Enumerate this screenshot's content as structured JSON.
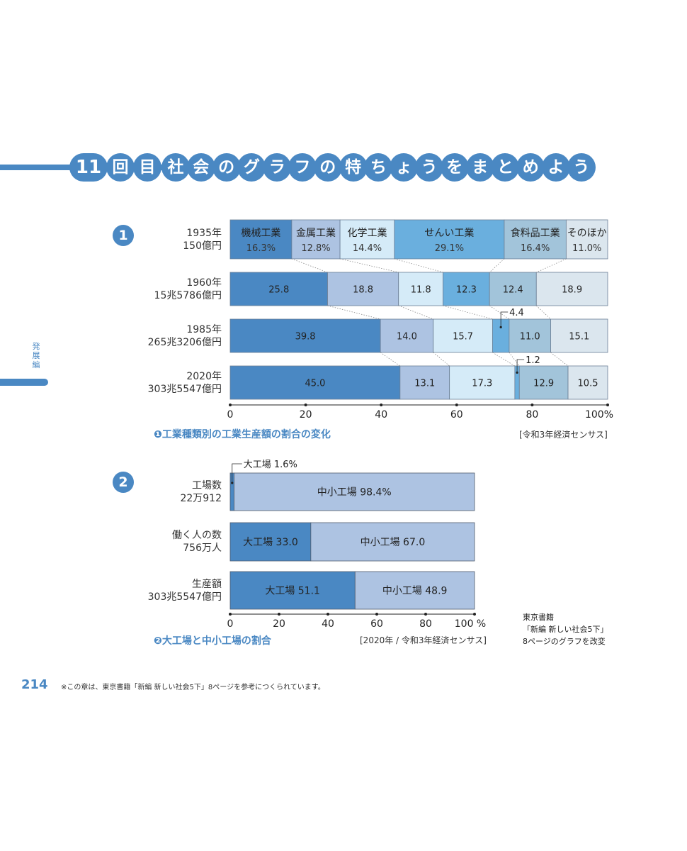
{
  "header": {
    "number": "11",
    "chars": [
      "回",
      "目",
      "社",
      "会",
      "の",
      "グ",
      "ラ",
      "フ",
      "の",
      "特",
      "ち",
      "ょ",
      "う",
      "を",
      "ま",
      "と",
      "め",
      "よ",
      "う"
    ]
  },
  "side": {
    "label": "発展編"
  },
  "colors": {
    "accent": "#4a88c3",
    "series": [
      "#4a88c3",
      "#adc3e2",
      "#d5ebf8",
      "#6aafde",
      "#a2c4da",
      "#dbe6ee"
    ]
  },
  "chart1": {
    "badge": "1",
    "caption": "❶工業種類別の工業生産額の割合の変化",
    "source": "[令和3年経済センサス]",
    "callouts": [
      "4.4",
      "1.2"
    ]
  },
  "chart2": {
    "badge": "2",
    "caption": "❷大工場と中小工場の割合",
    "source": "[2020年 / 令和3年経済センサス]",
    "callout": "大工場 1.6%"
  },
  "attribution": [
    "東京書籍",
    "「新編 新しい社会5下」",
    "8ページのグラフを改変"
  ],
  "footer": {
    "page": "214",
    "note": "※この章は、東京書籍「新編 新しい社会5下」8ページを参考につくられています。"
  },
  "chart_data": [
    {
      "type": "bar",
      "stacked": "100%",
      "orientation": "horizontal",
      "categories": [
        "1935年 150億円",
        "1960年 15兆5786億円",
        "1985年 265兆3206億円",
        "2020年 303兆5547億円"
      ],
      "row_labels": [
        [
          "1935年",
          "150億円"
        ],
        [
          "1960年",
          "15兆5786億円"
        ],
        [
          "1985年",
          "265兆3206億円"
        ],
        [
          "2020年",
          "303兆5547億円"
        ]
      ],
      "series": [
        {
          "name": "機械工業",
          "values": [
            16.3,
            25.8,
            39.8,
            45.0
          ]
        },
        {
          "name": "金属工業",
          "values": [
            12.8,
            18.8,
            14.0,
            13.1
          ]
        },
        {
          "name": "化学工業",
          "values": [
            14.4,
            11.8,
            15.7,
            17.3
          ]
        },
        {
          "name": "せんい工業",
          "values": [
            29.1,
            12.3,
            4.4,
            1.2
          ]
        },
        {
          "name": "食料品工業",
          "values": [
            16.4,
            12.4,
            11.0,
            12.9
          ]
        },
        {
          "name": "そのほか",
          "values": [
            11.0,
            18.9,
            15.1,
            10.5
          ]
        }
      ],
      "labels": [
        [
          "16.3%",
          "12.8%",
          "14.4%",
          "29.1%",
          "16.4%",
          "11.0%"
        ],
        [
          "25.8",
          "18.8",
          "11.8",
          "12.3",
          "12.4",
          "18.9"
        ],
        [
          "39.8",
          "14.0",
          "15.7",
          "",
          "11.0",
          "15.1"
        ],
        [
          "45.0",
          "13.1",
          "17.3",
          "",
          "12.9",
          "10.5"
        ]
      ],
      "xlim": [
        0,
        100
      ],
      "xticks": [
        "0",
        "20",
        "40",
        "60",
        "80",
        "100%"
      ],
      "title": "❶工業種類別の工業生産額の割合の変化"
    },
    {
      "type": "bar",
      "stacked": "100%",
      "orientation": "horizontal",
      "categories": [
        "工場数 22万912",
        "働く人の数 756万人",
        "生産額 303兆5547億円"
      ],
      "row_labels": [
        [
          "工場数",
          "22万912"
        ],
        [
          "働く人の数",
          "756万人"
        ],
        [
          "生産額",
          "303兆5547億円"
        ]
      ],
      "series": [
        {
          "name": "大工場",
          "values": [
            1.6,
            33.0,
            51.1
          ]
        },
        {
          "name": "中小工場",
          "values": [
            98.4,
            67.0,
            48.9
          ]
        }
      ],
      "labels": [
        [
          "",
          "中小工場 98.4%"
        ],
        [
          "大工場 33.0",
          "中小工場 67.0"
        ],
        [
          "大工場  51.1",
          "中小工場 48.9"
        ]
      ],
      "xlim": [
        0,
        100
      ],
      "xticks": [
        "0",
        "20",
        "40",
        "60",
        "80",
        "100 %"
      ],
      "title": "❷大工場と中小工場の割合"
    }
  ]
}
